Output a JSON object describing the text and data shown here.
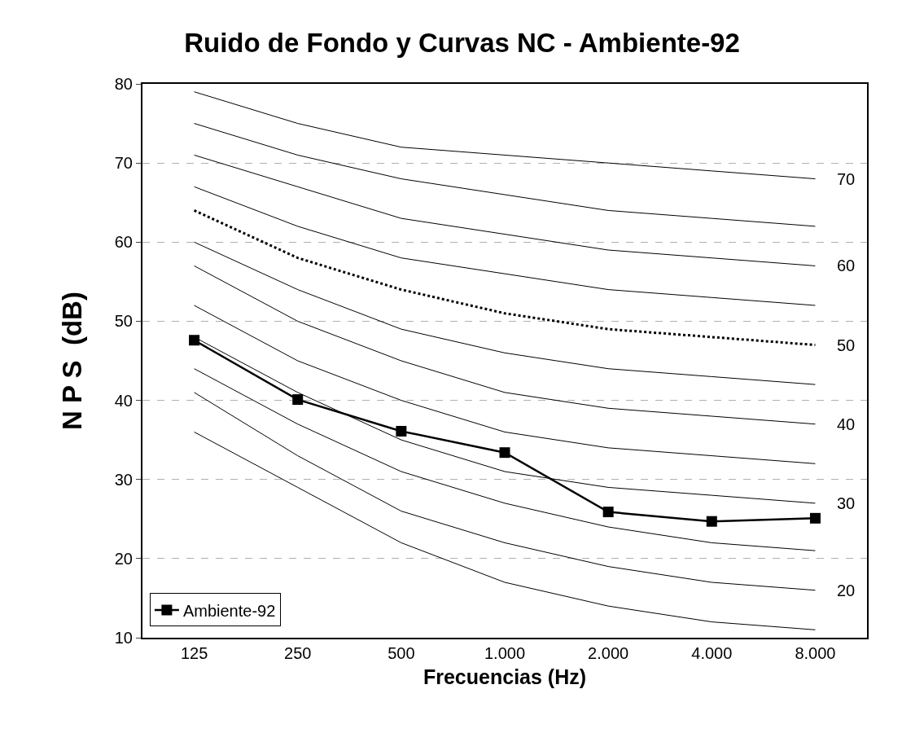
{
  "chart_data": {
    "type": "line",
    "title": "Ruido de Fondo y Curvas NC - Ambiente-92",
    "xlabel": "Frecuencias (Hz)",
    "ylabel": "N P S  (dB)",
    "categories": [
      "125",
      "250",
      "500",
      "1.000",
      "2.000",
      "4.000",
      "8.000"
    ],
    "ylim": [
      10,
      80
    ],
    "yticks": [
      10,
      20,
      30,
      40,
      50,
      60,
      70,
      80
    ],
    "grid": "y",
    "legend": "bottom left",
    "series": [
      {
        "color": "#000000",
        "line_style": "solid",
        "marker": "none",
        "values": [
          36,
          29,
          22,
          17,
          14,
          12,
          11
        ]
      },
      {
        "color": "#000000",
        "line_style": "solid",
        "marker": "none",
        "values": [
          41,
          33,
          26,
          22,
          19,
          17,
          16
        ]
      },
      {
        "color": "#000000",
        "line_style": "solid",
        "marker": "none",
        "values": [
          44,
          37,
          31,
          27,
          24,
          22,
          21
        ]
      },
      {
        "color": "#000000",
        "line_style": "solid",
        "marker": "none",
        "values": [
          48,
          41,
          35,
          31,
          29,
          28,
          27
        ]
      },
      {
        "color": "#000000",
        "line_style": "solid",
        "marker": "none",
        "values": [
          52,
          45,
          40,
          36,
          34,
          33,
          32
        ]
      },
      {
        "color": "#000000",
        "line_style": "solid",
        "marker": "none",
        "values": [
          57,
          50,
          45,
          41,
          39,
          38,
          37
        ]
      },
      {
        "color": "#000000",
        "line_style": "solid",
        "marker": "none",
        "values": [
          60,
          54,
          49,
          46,
          44,
          43,
          42
        ]
      },
      {
        "color": "#000000",
        "line_style": "dotted",
        "marker": "none",
        "values": [
          64,
          58,
          54,
          51,
          49,
          48,
          47
        ]
      },
      {
        "color": "#000000",
        "line_style": "solid",
        "marker": "none",
        "values": [
          67,
          62,
          58,
          56,
          54,
          53,
          52
        ]
      },
      {
        "color": "#000000",
        "line_style": "solid",
        "marker": "none",
        "values": [
          71,
          67,
          63,
          61,
          59,
          58,
          57
        ]
      },
      {
        "color": "#000000",
        "line_style": "solid",
        "marker": "none",
        "values": [
          75,
          71,
          68,
          66,
          64,
          63,
          62
        ]
      },
      {
        "color": "#000000",
        "line_style": "solid",
        "marker": "none",
        "values": [
          79,
          75,
          72,
          71,
          70,
          69,
          68
        ]
      },
      {
        "name": "Ambiente-92",
        "color": "#000000",
        "line_style": "solid",
        "marker": "square",
        "values": [
          47.6,
          40.1,
          36.1,
          33.4,
          25.9,
          24.7,
          25.1
        ]
      }
    ],
    "annotations": [
      {
        "text": "70",
        "x": "8.000",
        "y": 68
      },
      {
        "text": "60",
        "x": "8.000",
        "y": 57
      },
      {
        "text": "50",
        "x": "8.000",
        "y": 47
      },
      {
        "text": "40",
        "x": "8.000",
        "y": 37
      },
      {
        "text": "30",
        "x": "8.000",
        "y": 27
      },
      {
        "text": "20",
        "x": "8.000",
        "y": 16
      }
    ]
  }
}
